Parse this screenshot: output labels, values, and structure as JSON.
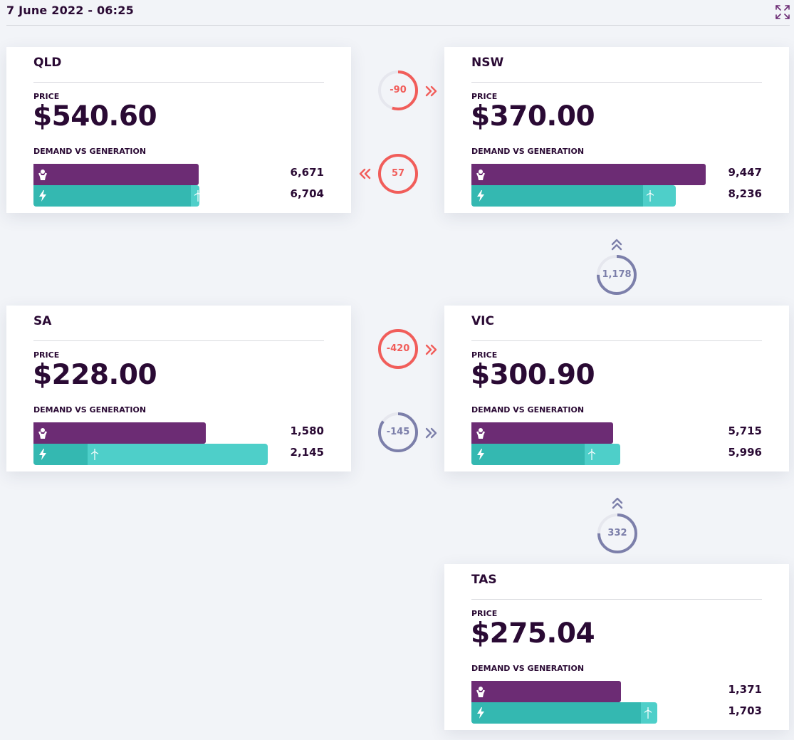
{
  "header": {
    "timestamp": "7 June 2022 - 06:25",
    "expand_icon": "expand-icon"
  },
  "colors": {
    "demand_bar": "#6c2c74",
    "generation_bar": "#34b8b1",
    "renewable_bar": "#4ecfc9",
    "interconnector_red": "#f15d5a",
    "interconnector_blue": "#7c7faa",
    "text_dark": "#2a0a34"
  },
  "labels": {
    "price": "PRICE",
    "demand_vs_generation": "DEMAND VS GENERATION"
  },
  "regions": {
    "qld": {
      "name": "QLD",
      "price": "$540.60",
      "demand": "6,671",
      "generation": "6,704",
      "demand_value": 6671,
      "generation_value": 6704,
      "renewable_share": 0.05
    },
    "nsw": {
      "name": "NSW",
      "price": "$370.00",
      "demand": "9,447",
      "generation": "8,236",
      "demand_value": 9447,
      "generation_value": 8236,
      "renewable_share": 0.16
    },
    "sa": {
      "name": "SA",
      "price": "$228.00",
      "demand": "1,580",
      "generation": "2,145",
      "demand_value": 1580,
      "generation_value": 2145,
      "renewable_share": 0.77
    },
    "vic": {
      "name": "VIC",
      "price": "$300.90",
      "demand": "5,715",
      "generation": "5,996",
      "demand_value": 5715,
      "generation_value": 5996,
      "renewable_share": 0.24
    },
    "tas": {
      "name": "TAS",
      "price": "$275.04",
      "demand": "1,371",
      "generation": "1,703",
      "demand_value": 1371,
      "generation_value": 1703,
      "renewable_share": 0.09
    }
  },
  "scales": {
    "mainland_max_mw": 9447,
    "small_region_max_mw": 2145
  },
  "interconnectors": {
    "qld_nsw": {
      "value": "-90",
      "direction": "right",
      "color": "red",
      "ring_fraction": 0.55
    },
    "nsw_qld": {
      "value": "57",
      "direction": "left",
      "color": "red",
      "ring_fraction": 1.0
    },
    "vic_nsw": {
      "value": "1,178",
      "direction": "up",
      "color": "blue",
      "ring_fraction": 0.75
    },
    "sa_vic_a": {
      "value": "-420",
      "direction": "right",
      "color": "red",
      "ring_fraction": 1.0
    },
    "sa_vic_b": {
      "value": "-145",
      "direction": "right",
      "color": "blue",
      "ring_fraction": 0.85
    },
    "tas_vic": {
      "value": "332",
      "direction": "up",
      "color": "blue",
      "ring_fraction": 0.75
    }
  }
}
